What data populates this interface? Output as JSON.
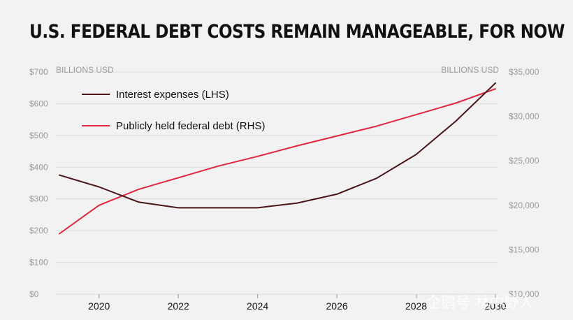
{
  "title": "U.S. FEDERAL DEBT COSTS REMAIN MANAGEABLE, FOR NOW",
  "watermark": "企鹅号 林中野人",
  "colors": {
    "background": "#f2f2f2",
    "interest": "#4a1419",
    "debt": "#e0273f",
    "grid": "#dcdcdc",
    "tick_text": "#9a9a9a"
  },
  "chart_data": {
    "type": "line",
    "title": "U.S. FEDERAL DEBT COSTS REMAIN MANAGEABLE, FOR NOW",
    "y_left_unit": "BILLIONS USD",
    "y_right_unit": "BILLIONS USD",
    "y_left_range": [
      0,
      700
    ],
    "y_right_range": [
      10000,
      35000
    ],
    "y_left_ticks": [
      "$0",
      "$100",
      "$200",
      "$300",
      "$400",
      "$500",
      "$600",
      "$700"
    ],
    "y_right_ticks": [
      "$10,000",
      "$15,000",
      "$20,000",
      "$25,000",
      "$30,000",
      "$35,000"
    ],
    "x_ticks": [
      "2020",
      "2022",
      "2024",
      "2026",
      "2028",
      "2030"
    ],
    "x_range": [
      2019,
      2030
    ],
    "grid": "horizontal",
    "legend_position": "top-left",
    "series": [
      {
        "name": "Interest expenses (LHS)",
        "axis": "left",
        "x": [
          2019,
          2020,
          2021,
          2022,
          2023,
          2024,
          2025,
          2026,
          2027,
          2028,
          2029,
          2030
        ],
        "values": [
          375,
          338,
          290,
          272,
          272,
          272,
          287,
          315,
          365,
          440,
          545,
          665
        ]
      },
      {
        "name": "Publicly held federal debt (RHS)",
        "axis": "right",
        "x": [
          2019,
          2020,
          2021,
          2022,
          2023,
          2024,
          2025,
          2026,
          2027,
          2028,
          2029,
          2030
        ],
        "values": [
          16800,
          20000,
          21800,
          23100,
          24400,
          25500,
          26700,
          27800,
          28900,
          30200,
          31500,
          33100
        ]
      }
    ]
  }
}
